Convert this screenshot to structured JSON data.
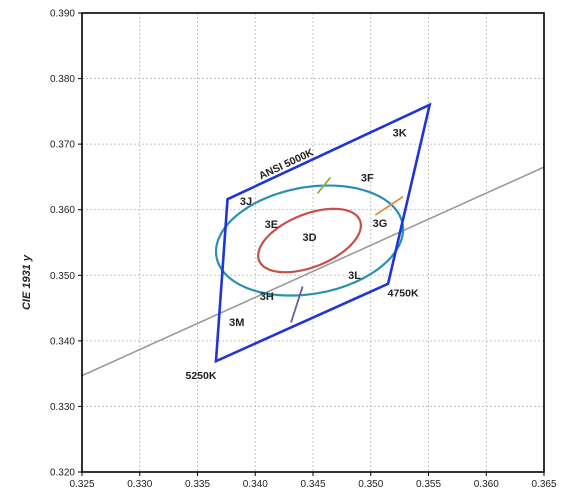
{
  "chart_data": {
    "type": "scatter",
    "title": "",
    "xlabel": "",
    "ylabel": "CIE 1931 y",
    "xlim": [
      0.325,
      0.365
    ],
    "ylim": [
      0.32,
      0.39
    ],
    "xticks": [
      "0.325",
      "0.330",
      "0.335",
      "0.340",
      "0.345",
      "0.350",
      "0.355",
      "0.360",
      "0.365"
    ],
    "yticks": [
      "0.320",
      "0.330",
      "0.340",
      "0.350",
      "0.360",
      "0.370",
      "0.380",
      "0.390"
    ],
    "grid": true,
    "colors": {
      "quadrangle": "#1f35d6",
      "outer_ellipse": "#2a8fb5",
      "inner_ellipse": "#c8504a",
      "locus": "#9a9a9a",
      "iso_upper": "#8fae3a",
      "iso_lower": "#6a5aa8",
      "iso_right": "#e08c3a",
      "grid": "#b5b5b5"
    },
    "series": [
      {
        "name": "ANSI 5000K",
        "kind": "quadrangle",
        "points": [
          [
            0.3376,
            0.3616
          ],
          [
            0.3551,
            0.376
          ],
          [
            0.3515,
            0.3487
          ],
          [
            0.3366,
            0.3369
          ]
        ]
      }
    ],
    "locus": [
      [
        0.325,
        0.3347
      ],
      [
        0.365,
        0.3665
      ]
    ],
    "ellipses": [
      {
        "kind": "outer",
        "center": [
          0.3447,
          0.3553
        ],
        "rx": 0.00905,
        "ry": 0.00735,
        "angle_deg": 50
      },
      {
        "kind": "inner",
        "center": [
          0.3447,
          0.3553
        ],
        "rx": 0.00565,
        "ry": 0.00335,
        "angle_deg": 50
      }
    ],
    "isotemp_segments": [
      {
        "kind": "upper",
        "from": [
          0.3454,
          0.3625
        ],
        "to": [
          0.3465,
          0.3649
        ]
      },
      {
        "kind": "lower",
        "from": [
          0.3441,
          0.3483
        ],
        "to": [
          0.3431,
          0.3428
        ]
      },
      {
        "kind": "right",
        "from": [
          0.3504,
          0.3592
        ],
        "to": [
          0.3528,
          0.362
        ]
      }
    ],
    "annotations": [
      {
        "text": "ANSI 5000K",
        "x": 0.3428,
        "y": 0.3665,
        "kind": "series"
      },
      {
        "text": "3K",
        "x": 0.3525,
        "y": 0.3712,
        "kind": "region"
      },
      {
        "text": "3J",
        "x": 0.3392,
        "y": 0.3607,
        "kind": "region"
      },
      {
        "text": "3F",
        "x": 0.3497,
        "y": 0.3643,
        "kind": "region"
      },
      {
        "text": "3E",
        "x": 0.3414,
        "y": 0.3572,
        "kind": "region"
      },
      {
        "text": "3D",
        "x": 0.3447,
        "y": 0.3552,
        "kind": "region"
      },
      {
        "text": "3G",
        "x": 0.3508,
        "y": 0.3574,
        "kind": "region"
      },
      {
        "text": "3L",
        "x": 0.3486,
        "y": 0.3494,
        "kind": "region"
      },
      {
        "text": "3H",
        "x": 0.341,
        "y": 0.3462,
        "kind": "region"
      },
      {
        "text": "3M",
        "x": 0.3384,
        "y": 0.3423,
        "kind": "region"
      },
      {
        "text": "4750K",
        "x": 0.3528,
        "y": 0.3468,
        "kind": "cct"
      },
      {
        "text": "5250K",
        "x": 0.3353,
        "y": 0.3342,
        "kind": "cct"
      }
    ]
  }
}
